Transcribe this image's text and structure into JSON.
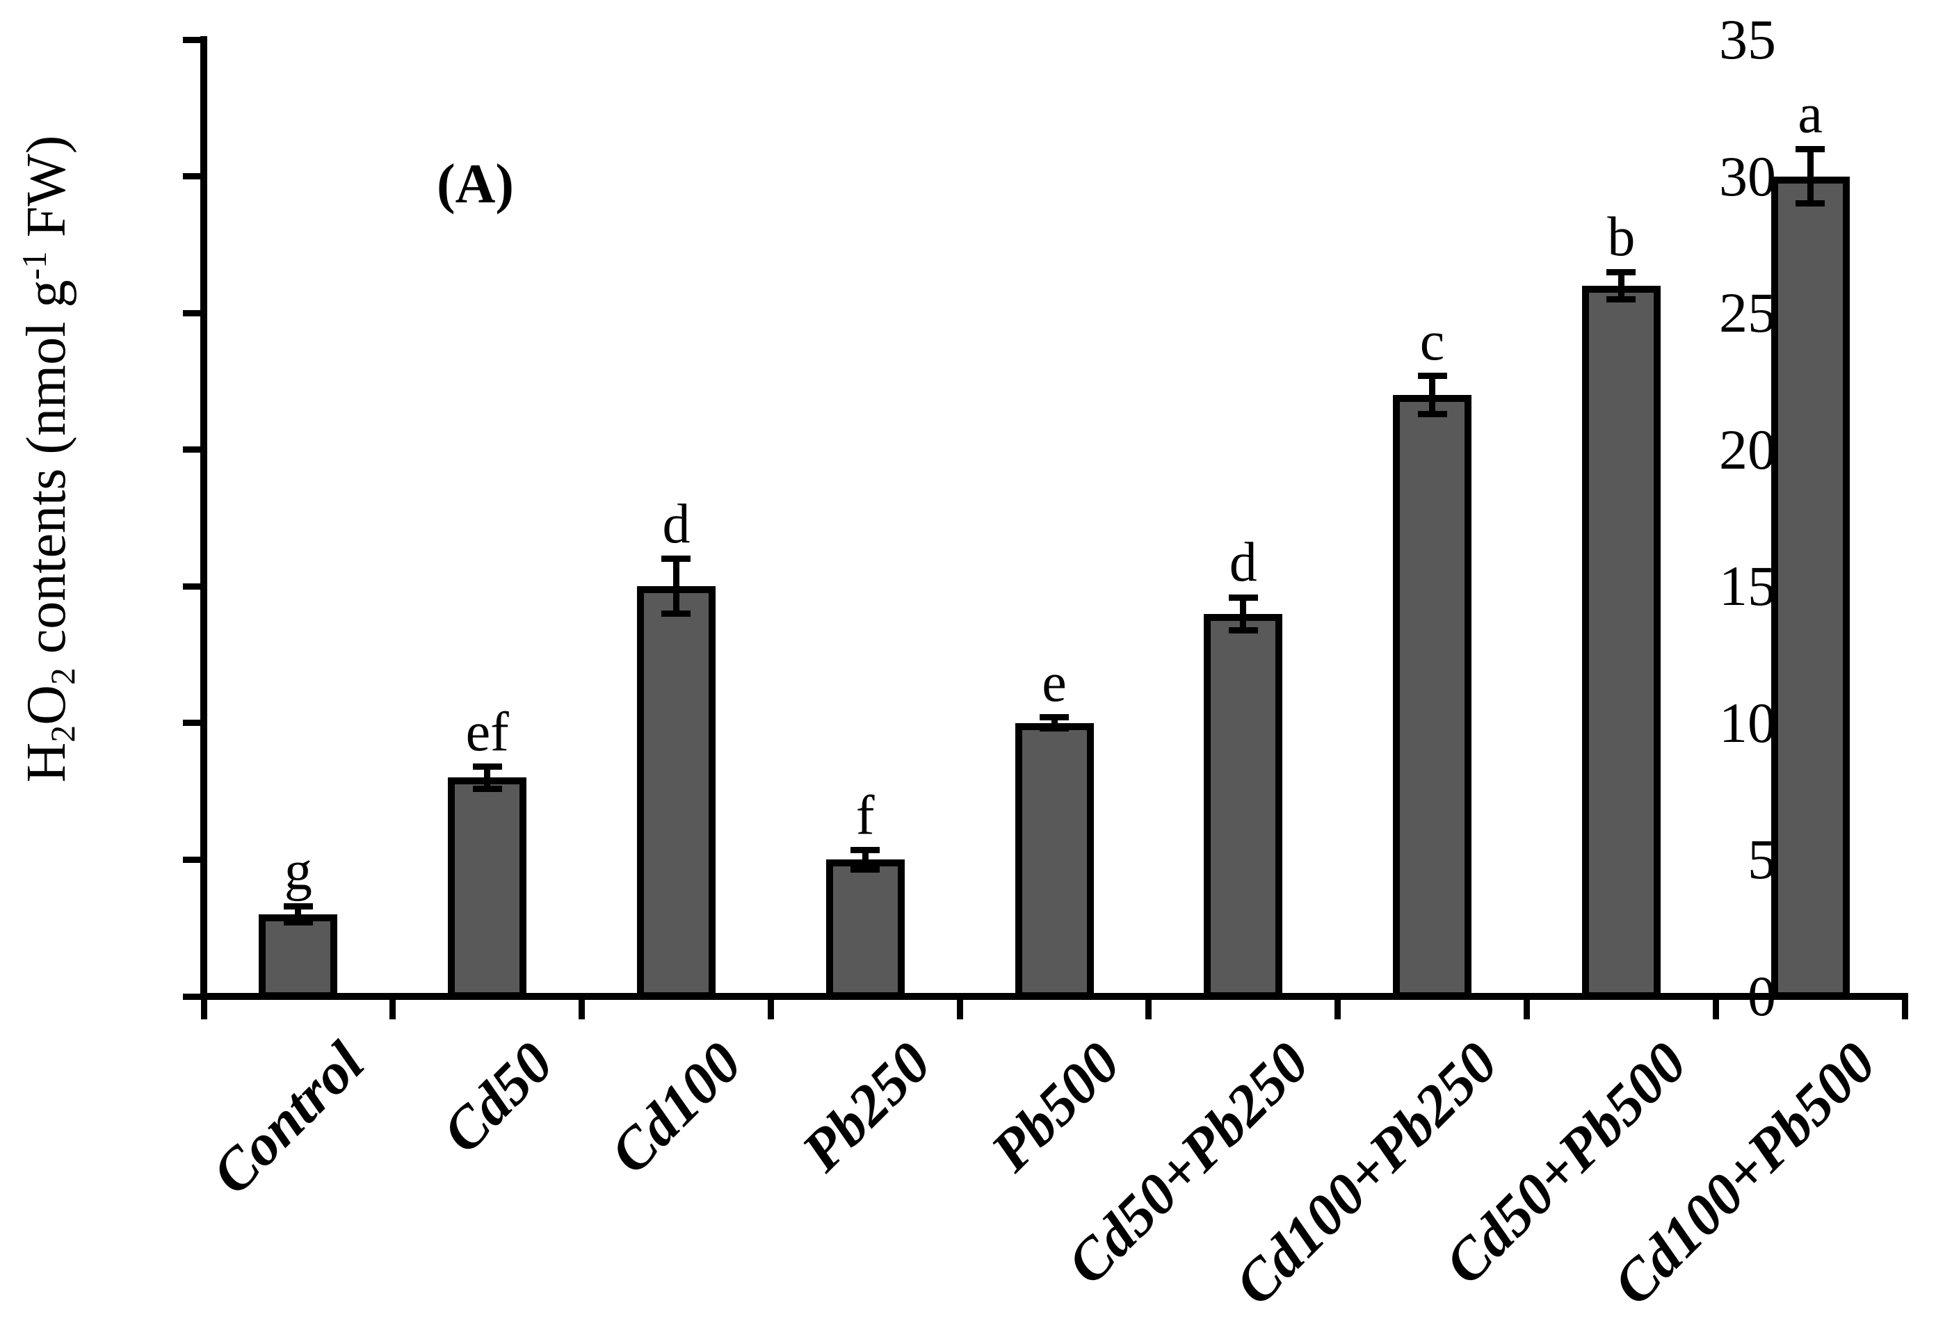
{
  "figure": {
    "panel_label": "(A)",
    "background_color": "#ffffff",
    "axis_color": "#000000"
  },
  "chart_data": {
    "type": "bar",
    "title": "",
    "panel_label": "(A)",
    "categories": [
      "Control",
      "Cd50",
      "Cd100",
      "Pb250",
      "Pb500",
      "Cd50+Pb250",
      "Cd100+Pb250",
      "Cd50+Pb500",
      "Cd100+Pb500"
    ],
    "values": [
      3,
      8,
      15,
      5,
      10,
      14,
      22,
      26,
      30
    ],
    "errors": [
      0.3,
      0.4,
      1.0,
      0.35,
      0.2,
      0.6,
      0.7,
      0.5,
      1.0
    ],
    "significance_letters": [
      "g",
      "ef",
      "d",
      "f",
      "e",
      "d",
      "c",
      "b",
      "a"
    ],
    "ylabel": "H2O2 contents (nmol g-1 FW)",
    "ylabel_rich": [
      {
        "t": "H"
      },
      {
        "t": "2",
        "style": "sub"
      },
      {
        "t": "O"
      },
      {
        "t": "2",
        "style": "sub"
      },
      {
        "t": " contents (nmol g"
      },
      {
        "t": "-1",
        "style": "sup"
      },
      {
        "t": " FW)"
      }
    ],
    "xlabel": "",
    "ylim": [
      0,
      35
    ],
    "yticks": [
      0,
      5,
      10,
      15,
      20,
      25,
      30,
      35
    ],
    "bar_color": "#595959",
    "bar_edge_color": "#000000",
    "error_bar_color": "#000000",
    "grid": false,
    "legend": null
  }
}
